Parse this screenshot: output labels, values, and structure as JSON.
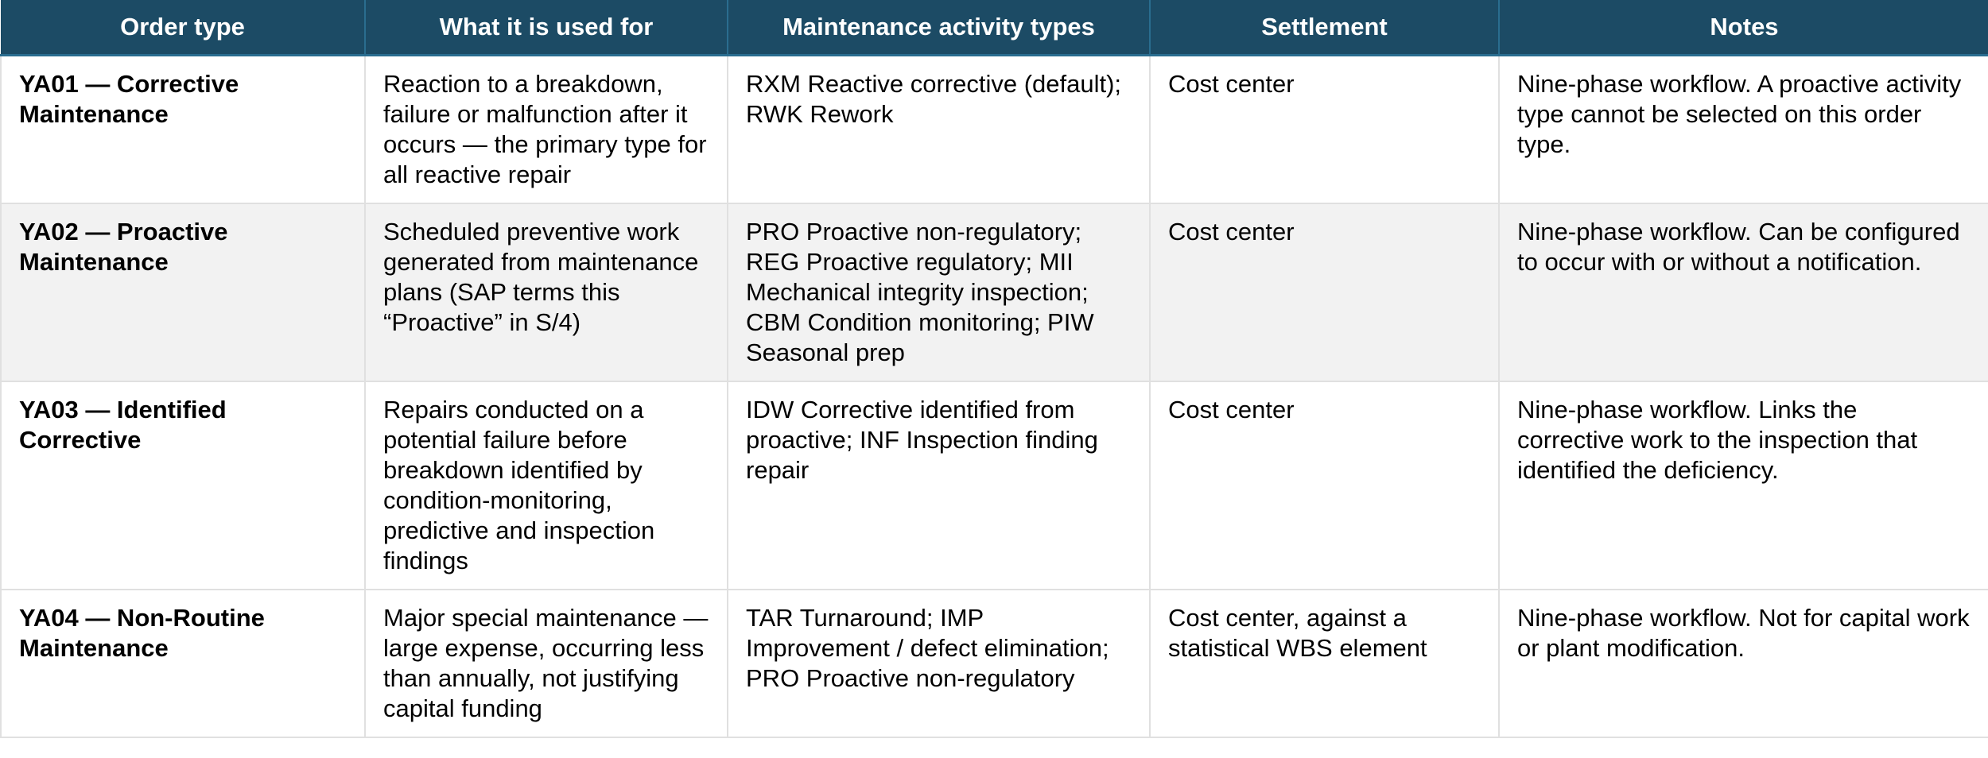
{
  "table": {
    "headers": [
      "Order type",
      "What it is used for",
      "Maintenance activity types",
      "Settlement",
      "Notes"
    ],
    "rows": [
      {
        "order_type": "YA01 — Corrective Maintenance",
        "used_for": "Reaction to a breakdown, failure or malfunction after it occurs — the primary type for all reactive repair",
        "activity_types": "RXM Reactive corrective (default); RWK Rework",
        "settlement": "Cost center",
        "notes": "Nine-phase workflow. A proactive activity type cannot be selected on this order type."
      },
      {
        "order_type": "YA02 — Proactive Maintenance",
        "used_for": "Scheduled preventive work generated from maintenance plans (SAP terms this “Proactive” in S/4)",
        "activity_types": "PRO Proactive non-regulatory; REG Proactive regulatory; MII Mechanical integrity inspection; CBM Condition monitoring; PIW Seasonal prep",
        "settlement": "Cost center",
        "notes": "Nine-phase workflow. Can be configured to occur with or without a notification."
      },
      {
        "order_type": "YA03 — Identified Corrective",
        "used_for": "Repairs conducted on a potential failure before breakdown identified by condition-monitoring, predictive and inspection findings",
        "activity_types": "IDW Corrective identified from proactive; INF Inspection finding repair",
        "settlement": "Cost center",
        "notes": "Nine-phase workflow. Links the corrective work to the inspection that identified the deficiency."
      },
      {
        "order_type": "YA04 — Non-Routine Maintenance",
        "used_for": "Major special maintenance — large expense, occurring less than annually, not justifying capital funding",
        "activity_types": "TAR Turnaround; IMP Improvement / defect elimination; PRO Proactive non-regulatory",
        "settlement": "Cost center, against a statistical WBS element",
        "notes": "Nine-phase workflow. Not for capital work or plant modification."
      }
    ]
  },
  "colors": {
    "header_bg": "#1c4b65",
    "header_text": "#ffffff",
    "row_alt_bg": "#f2f2f2",
    "grid_line": "#e0e0e0"
  }
}
